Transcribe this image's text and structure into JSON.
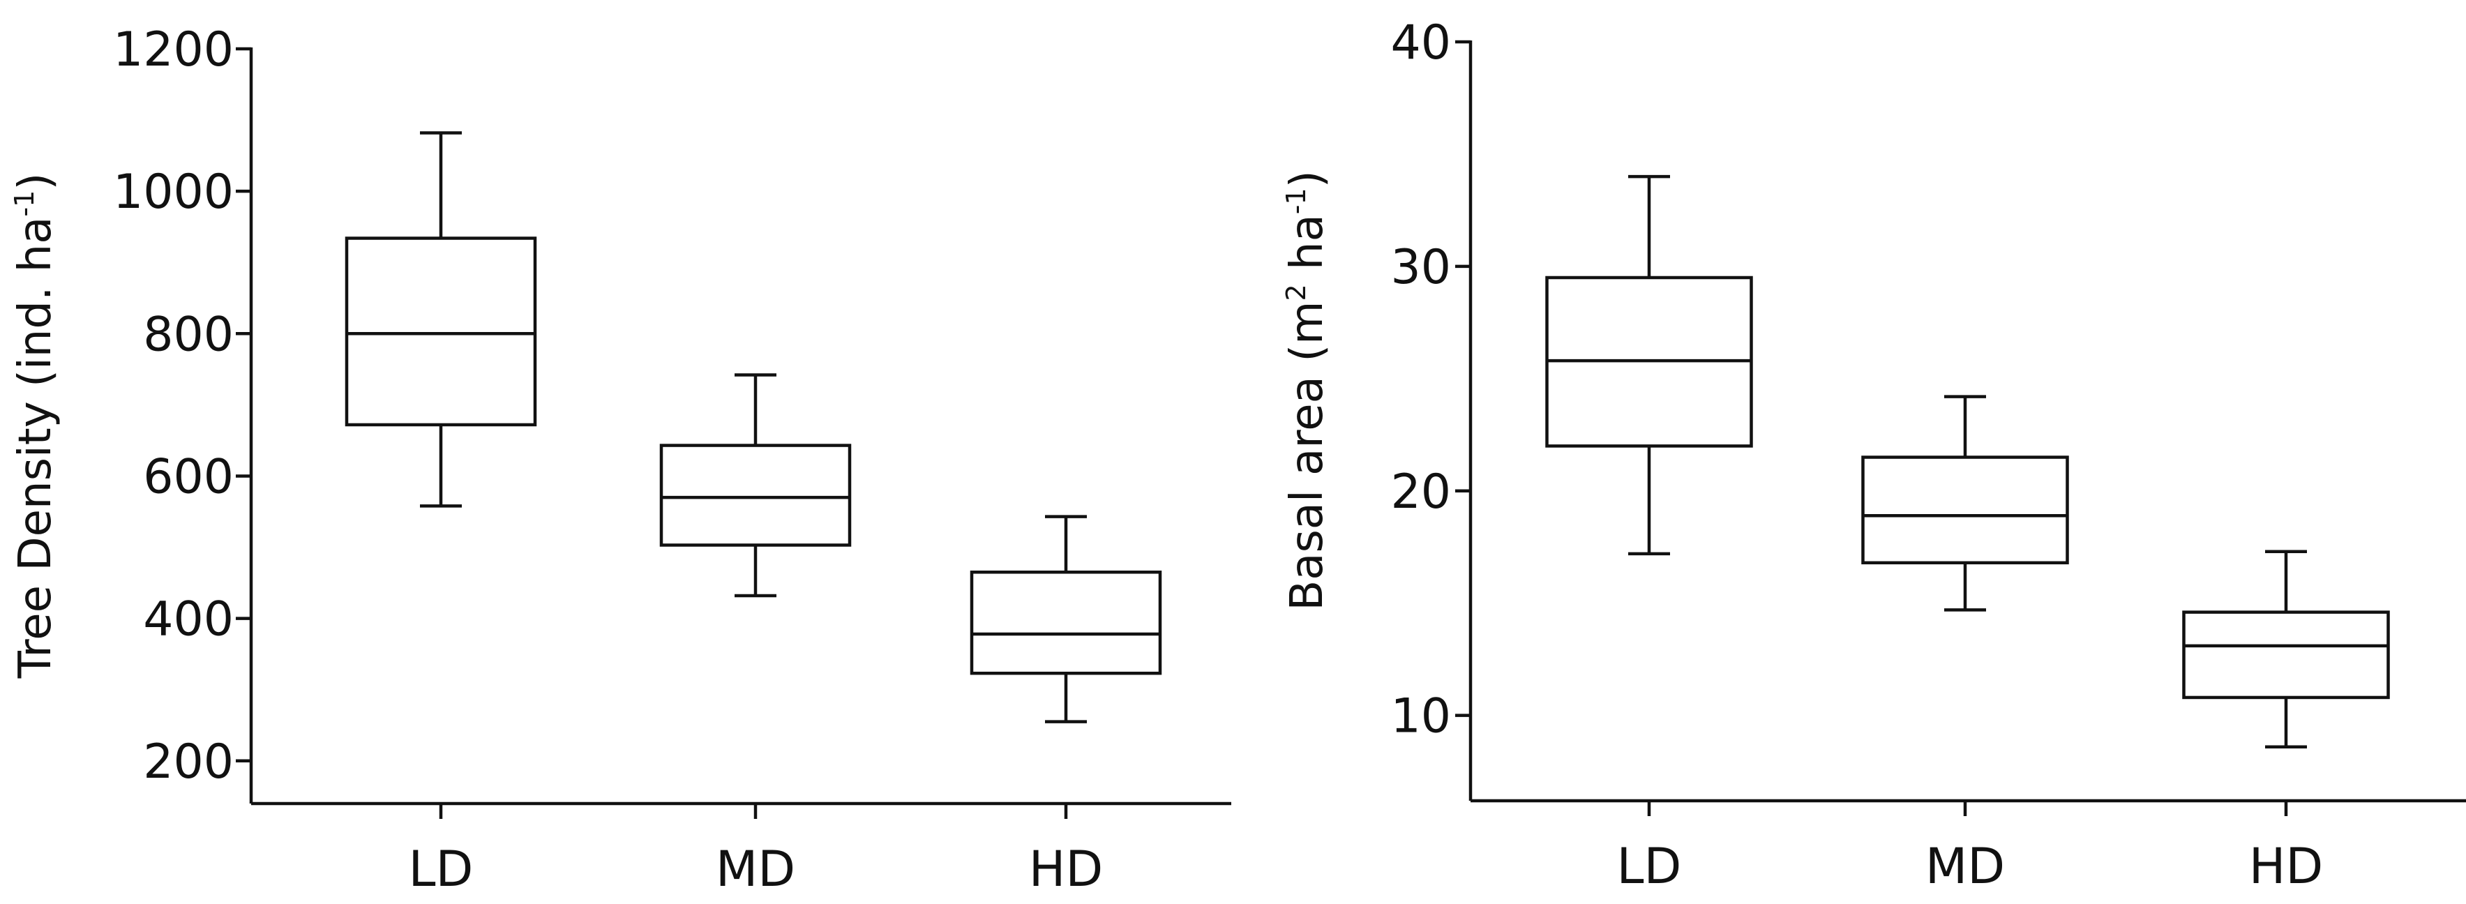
{
  "chart_data": [
    {
      "type": "box",
      "categories": [
        "LD",
        "MD",
        "HD"
      ],
      "ylabel": "Tree Density (ind. ha",
      "ylabel_sup": "-1",
      "ylabel_close": ")",
      "yticks": [
        200,
        400,
        600,
        800,
        1000,
        1200
      ],
      "ylim": [
        140,
        1200
      ],
      "boxes": [
        {
          "category": "LD",
          "whisker_low": 558,
          "q1": 672,
          "median": 800,
          "q3": 934,
          "whisker_high": 1082
        },
        {
          "category": "MD",
          "whisker_low": 432,
          "q1": 503,
          "median": 570,
          "q3": 643,
          "whisker_high": 742
        },
        {
          "category": "HD",
          "whisker_low": 255,
          "q1": 323,
          "median": 378,
          "q3": 465,
          "whisker_high": 543
        }
      ]
    },
    {
      "type": "box",
      "categories": [
        "LD",
        "MD",
        "HD"
      ],
      "ylabel": "Basal area (m",
      "ylabel_sup": "2",
      "ylabel_mid": " ha",
      "ylabel_sup2": "-1",
      "ylabel_close": ")",
      "yticks": [
        10,
        20,
        30,
        40
      ],
      "ylim": [
        6.2,
        40
      ],
      "boxes": [
        {
          "category": "LD",
          "whisker_low": 17.2,
          "q1": 22.0,
          "median": 25.8,
          "q3": 29.5,
          "whisker_high": 34.0
        },
        {
          "category": "MD",
          "whisker_low": 14.7,
          "q1": 16.8,
          "median": 18.9,
          "q3": 21.5,
          "whisker_high": 24.2
        },
        {
          "category": "HD",
          "whisker_low": 8.6,
          "q1": 10.8,
          "median": 13.1,
          "q3": 14.6,
          "whisker_high": 17.3
        }
      ]
    }
  ]
}
